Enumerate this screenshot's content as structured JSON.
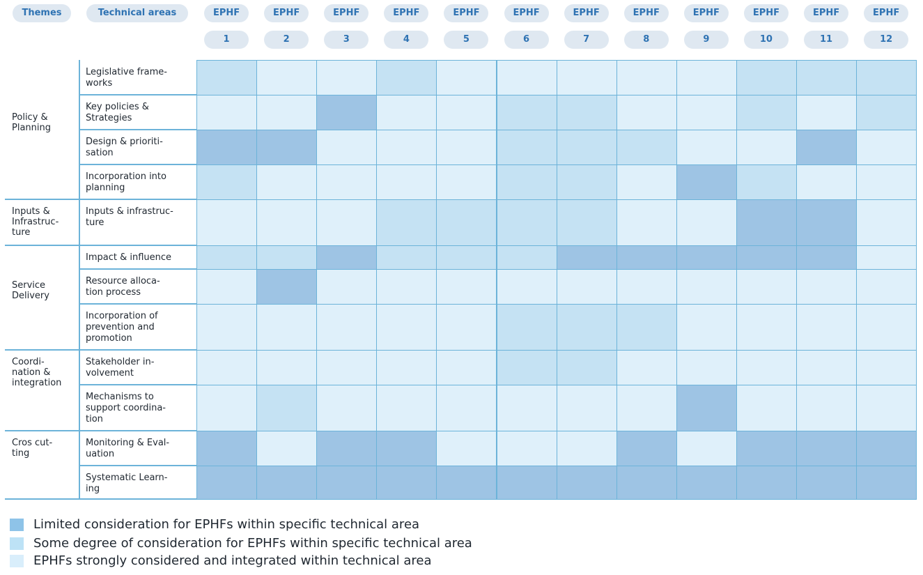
{
  "chart_data": {
    "type": "heatmap",
    "header": {
      "themes_label": "Themes",
      "areas_label": "Technical areas",
      "column_prefix": "EPHF",
      "columns": [
        "1",
        "2",
        "3",
        "4",
        "5",
        "6",
        "7",
        "8",
        "9",
        "10",
        "11",
        "12"
      ]
    },
    "themes": [
      {
        "label": "Policy &\nPlanning",
        "rows": [
          0,
          3
        ]
      },
      {
        "label": "Inputs &\nInfrastruc-\nture",
        "rows": [
          4,
          4
        ]
      },
      {
        "label": "Service\nDelivery",
        "rows": [
          5,
          7
        ]
      },
      {
        "label": "Coordi-\nnation &\nintegration",
        "rows": [
          8,
          9
        ]
      },
      {
        "label": "Cros cut-\nting",
        "rows": [
          10,
          11
        ]
      }
    ],
    "rows": [
      {
        "label": "Legislative frame-\nworks",
        "values": [
          2,
          3,
          3,
          2,
          3,
          3,
          3,
          3,
          3,
          2,
          2,
          2
        ]
      },
      {
        "label": "Key policies &\nStrategies",
        "values": [
          3,
          3,
          1,
          3,
          3,
          2,
          2,
          3,
          3,
          2,
          3,
          2
        ]
      },
      {
        "label": "Design & prioriti-\nsation",
        "values": [
          1,
          1,
          3,
          3,
          3,
          2,
          2,
          2,
          3,
          3,
          1,
          3
        ]
      },
      {
        "label": "Incorporation into\nplanning",
        "values": [
          2,
          3,
          3,
          3,
          3,
          2,
          2,
          3,
          1,
          2,
          3,
          3
        ]
      },
      {
        "label": "Inputs & infrastruc-\nture",
        "values": [
          3,
          3,
          3,
          2,
          2,
          2,
          2,
          3,
          3,
          1,
          1,
          3
        ]
      },
      {
        "label": "Impact & influence",
        "values": [
          2,
          2,
          1,
          2,
          2,
          2,
          1,
          1,
          1,
          1,
          1,
          3
        ]
      },
      {
        "label": "Resource alloca-\ntion process",
        "values": [
          3,
          1,
          3,
          3,
          3,
          3,
          3,
          3,
          3,
          3,
          3,
          3
        ]
      },
      {
        "label": "Incorporation of\nprevention and\npromotion",
        "values": [
          3,
          3,
          3,
          3,
          3,
          2,
          2,
          2,
          3,
          3,
          3,
          3
        ]
      },
      {
        "label": "Stakeholder in-\nvolvement",
        "values": [
          3,
          3,
          3,
          3,
          3,
          2,
          2,
          3,
          3,
          3,
          3,
          3
        ]
      },
      {
        "label": "Mechanisms to\nsupport coordina-\ntion",
        "values": [
          3,
          2,
          3,
          3,
          3,
          3,
          3,
          3,
          1,
          3,
          3,
          3
        ]
      },
      {
        "label": "Monitoring & Eval-\nuation",
        "values": [
          1,
          3,
          1,
          1,
          3,
          3,
          3,
          1,
          3,
          1,
          1,
          1
        ]
      },
      {
        "label": "Systematic Learn-\ning",
        "values": [
          1,
          1,
          1,
          1,
          1,
          1,
          1,
          1,
          1,
          1,
          1,
          1
        ]
      }
    ],
    "levels": [
      {
        "value": 1,
        "label": "Limited consideration for EPHFs within specific technical area",
        "color": "#9ec4e4"
      },
      {
        "value": 2,
        "label": "Some degree of consideration for EPHFs within specific technical area",
        "color": "#c5e2f3"
      },
      {
        "value": 3,
        "label": "EPHFs strongly considered and integrated within technical area",
        "color": "#dff0fa"
      }
    ],
    "legend_swatch_colors": [
      "#8ec3e8",
      "#bde2f6",
      "#d9eefb"
    ],
    "grid_color": "#6cb3d9",
    "header_pill_color": "#dfe8f1",
    "header_text_color": "#2f73b3"
  }
}
